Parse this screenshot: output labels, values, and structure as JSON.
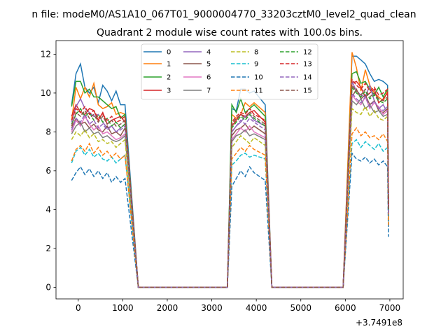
{
  "suptitle": "n file: modeM0/AS1A10_067T01_9000004770_33203cztM0_level2_quad_clean",
  "chart_data": {
    "type": "line",
    "title": "Quadrant 2 module wise count rates with 100.0s bins.",
    "xlabel": "",
    "ylabel": "",
    "offset_label": "+3.7491e8",
    "xlim": [
      -500,
      7300
    ],
    "ylim": [
      -0.6,
      12.7
    ],
    "xticks": [
      0,
      1000,
      2000,
      3000,
      4000,
      5000,
      6000,
      7000
    ],
    "xtick_labels": [
      "0",
      "1000",
      "2000",
      "3000",
      "4000",
      "5000",
      "6000",
      "7000"
    ],
    "yticks": [
      0,
      2,
      4,
      6,
      8,
      10,
      12
    ],
    "ytick_labels": [
      "0",
      "2",
      "4",
      "6",
      "8",
      "10",
      "12"
    ],
    "legend": {
      "placement": "top-center",
      "columns": 4
    },
    "segments": [
      {
        "x": [
          -150,
          -50,
          50,
          150,
          250,
          350,
          450,
          550,
          650,
          750,
          850,
          950,
          1050,
          1150,
          1250,
          1350
        ],
        "x_end_drop": 1350
      },
      {
        "x": [
          3350,
          3450,
          3550,
          3650,
          3750,
          3850,
          3950,
          4050,
          4150,
          4250,
          4350
        ]
      },
      {
        "x": [
          5950,
          6050,
          6150,
          6250,
          6350,
          6450,
          6550,
          6650,
          6750,
          6850,
          6950
        ]
      }
    ],
    "gaps": {
      "zero_x": [
        [
          1350,
          3350
        ],
        [
          4350,
          5950
        ]
      ],
      "zero_value": 0
    },
    "series": [
      {
        "name": "0",
        "color": "#1f77b4",
        "dash": "solid",
        "values": [
          9.4,
          11.0,
          11.5,
          10.3,
          10.0,
          10.3,
          9.5,
          10.4,
          10.1,
          9.6,
          10.1,
          9.4,
          9.4,
          0,
          0,
          9.2,
          9.1,
          10.2,
          10.2,
          10.0,
          10.1,
          9.4,
          0,
          0,
          11.9,
          11.9,
          11.7,
          11.5,
          11.0,
          10.6,
          10.7,
          10.6,
          10.4,
          4.3
        ]
      },
      {
        "name": "1",
        "color": "#ff7f0e",
        "dash": "solid",
        "values": [
          8.6,
          10.3,
          9.7,
          10.3,
          9.8,
          10.5,
          9.4,
          9.2,
          9.3,
          9.5,
          8.9,
          9.0,
          8.9,
          0,
          0,
          8.9,
          8.7,
          8.9,
          9.5,
          9.3,
          9.5,
          9.0,
          0,
          0,
          12.1,
          11.3,
          10.1,
          11.2,
          10.4,
          10.0,
          9.8,
          9.6,
          10.1,
          4.1
        ]
      },
      {
        "name": "2",
        "color": "#2ca02c",
        "dash": "solid",
        "values": [
          9.3,
          10.6,
          10.6,
          10.0,
          10.2,
          9.8,
          9.8,
          9.6,
          9.4,
          9.2,
          9.3,
          8.7,
          8.9,
          0,
          0,
          9.4,
          9.0,
          9.7,
          9.0,
          9.2,
          9.4,
          8.8,
          0,
          0,
          11.0,
          11.1,
          10.5,
          10.6,
          10.2,
          9.9,
          10.3,
          9.8,
          10.2,
          4.0
        ]
      },
      {
        "name": "3",
        "color": "#d62728",
        "dash": "solid",
        "values": [
          8.8,
          9.4,
          9.0,
          8.9,
          9.2,
          9.1,
          8.6,
          9.0,
          8.4,
          8.6,
          8.7,
          8.8,
          8.5,
          0,
          0,
          8.3,
          8.6,
          8.9,
          8.8,
          9.0,
          9.1,
          8.5,
          0,
          0,
          10.5,
          10.6,
          10.3,
          9.8,
          10.0,
          10.2,
          9.5,
          9.7,
          10.0,
          4.0
        ]
      },
      {
        "name": "4",
        "color": "#9467bd",
        "dash": "solid",
        "values": [
          8.5,
          9.3,
          9.7,
          9.2,
          9.0,
          8.8,
          8.9,
          8.5,
          8.2,
          8.3,
          8.0,
          8.2,
          8.4,
          0,
          0,
          8.0,
          8.3,
          8.5,
          8.8,
          8.9,
          8.6,
          8.3,
          0,
          0,
          10.6,
          10.1,
          9.9,
          9.8,
          10.4,
          9.6,
          9.2,
          9.4,
          9.0,
          3.9
        ]
      },
      {
        "name": "5",
        "color": "#8c564b",
        "dash": "solid",
        "values": [
          8.2,
          8.7,
          8.4,
          8.5,
          8.2,
          8.4,
          8.1,
          8.0,
          8.3,
          7.9,
          8.0,
          7.8,
          8.2,
          0,
          0,
          7.8,
          8.1,
          8.2,
          8.4,
          8.1,
          8.3,
          7.9,
          0,
          0,
          9.8,
          10.2,
          9.7,
          9.9,
          9.4,
          9.6,
          9.1,
          9.0,
          9.2,
          3.8
        ]
      },
      {
        "name": "6",
        "color": "#e377c2",
        "dash": "solid",
        "values": [
          8.0,
          8.6,
          8.3,
          8.8,
          8.4,
          8.1,
          8.3,
          7.9,
          8.0,
          7.8,
          7.6,
          7.7,
          7.9,
          0,
          0,
          7.6,
          7.9,
          8.2,
          8.0,
          8.3,
          8.0,
          7.7,
          0,
          0,
          9.9,
          9.6,
          9.4,
          9.8,
          9.2,
          9.5,
          9.3,
          8.9,
          9.1,
          3.7
        ]
      },
      {
        "name": "7",
        "color": "#7f7f7f",
        "dash": "solid",
        "values": [
          7.9,
          8.3,
          8.5,
          8.0,
          8.2,
          7.9,
          8.0,
          7.7,
          7.8,
          7.6,
          7.5,
          7.6,
          7.8,
          0,
          0,
          7.5,
          7.8,
          7.9,
          8.1,
          7.8,
          7.9,
          7.6,
          0,
          0,
          9.6,
          9.4,
          9.7,
          9.2,
          9.4,
          9.0,
          9.1,
          8.8,
          8.9,
          3.6
        ]
      },
      {
        "name": "8",
        "color": "#bcbd22",
        "dash": "dashed",
        "values": [
          7.6,
          8.0,
          7.8,
          8.1,
          7.7,
          7.9,
          7.5,
          7.6,
          7.4,
          7.5,
          7.2,
          7.4,
          7.6,
          0,
          0,
          7.2,
          7.5,
          7.8,
          7.6,
          7.4,
          7.7,
          7.3,
          0,
          0,
          9.2,
          9.0,
          8.9,
          9.3,
          8.8,
          9.1,
          8.7,
          8.6,
          8.8,
          3.4
        ]
      },
      {
        "name": "9",
        "color": "#17becf",
        "dash": "dashed",
        "values": [
          6.4,
          7.0,
          7.2,
          6.8,
          7.1,
          6.7,
          6.9,
          6.6,
          6.5,
          6.7,
          6.4,
          6.6,
          6.8,
          0,
          0,
          6.3,
          6.5,
          6.8,
          6.9,
          6.7,
          6.8,
          6.6,
          0,
          0,
          7.4,
          7.6,
          7.2,
          7.5,
          7.3,
          7.1,
          7.4,
          7.0,
          7.2,
          3.1
        ]
      },
      {
        "name": "10",
        "color": "#1f77b4",
        "dash": "dashed",
        "values": [
          5.5,
          5.9,
          6.2,
          5.8,
          6.1,
          5.7,
          6.0,
          5.6,
          5.9,
          5.4,
          5.7,
          5.4,
          5.6,
          0,
          0,
          5.2,
          5.6,
          6.0,
          5.7,
          6.2,
          5.9,
          5.5,
          0,
          0,
          6.9,
          6.6,
          6.5,
          6.7,
          6.4,
          6.6,
          6.3,
          6.5,
          6.2,
          2.6
        ]
      },
      {
        "name": "11",
        "color": "#ff7f0e",
        "dash": "dashed",
        "values": [
          6.5,
          7.1,
          7.3,
          7.0,
          7.4,
          6.9,
          7.2,
          6.8,
          7.0,
          6.7,
          6.9,
          6.6,
          6.8,
          0,
          0,
          6.6,
          6.9,
          7.2,
          7.0,
          7.3,
          7.1,
          6.8,
          0,
          0,
          7.9,
          8.2,
          7.8,
          8.0,
          7.7,
          7.8,
          7.6,
          7.9,
          7.5,
          3.2
        ]
      },
      {
        "name": "12",
        "color": "#2ca02c",
        "dash": "dashed",
        "values": [
          8.4,
          8.9,
          9.2,
          8.8,
          9.0,
          8.6,
          8.9,
          8.5,
          8.7,
          8.3,
          8.5,
          8.2,
          8.4,
          0,
          0,
          8.2,
          8.5,
          8.8,
          8.6,
          8.9,
          8.7,
          8.3,
          0,
          0,
          10.3,
          10.0,
          9.8,
          10.1,
          9.7,
          9.9,
          9.6,
          9.5,
          9.7,
          3.9
        ]
      },
      {
        "name": "13",
        "color": "#d62728",
        "dash": "dashed",
        "values": [
          8.6,
          9.2,
          9.0,
          9.3,
          8.9,
          9.1,
          8.7,
          8.9,
          8.6,
          8.8,
          8.5,
          8.6,
          8.8,
          0,
          0,
          8.5,
          8.8,
          9.0,
          8.9,
          9.2,
          8.9,
          8.6,
          0,
          0,
          10.7,
          10.4,
          10.2,
          10.5,
          10.1,
          10.3,
          9.9,
          10.0,
          10.2,
          4.1
        ]
      },
      {
        "name": "14",
        "color": "#9467bd",
        "dash": "dashed",
        "values": [
          8.1,
          8.7,
          8.5,
          8.9,
          8.4,
          8.6,
          8.2,
          8.4,
          8.1,
          8.3,
          8.0,
          8.1,
          8.3,
          0,
          0,
          8.0,
          8.3,
          8.6,
          8.4,
          8.7,
          8.5,
          8.1,
          0,
          0,
          10.0,
          9.7,
          9.5,
          9.8,
          9.3,
          9.6,
          9.2,
          9.1,
          9.3,
          3.8
        ]
      },
      {
        "name": "15",
        "color": "#8c564b",
        "dash": "dashed",
        "values": [
          8.3,
          9.0,
          8.8,
          9.1,
          8.7,
          8.9,
          8.5,
          8.8,
          8.4,
          8.6,
          8.3,
          8.4,
          8.6,
          0,
          0,
          8.4,
          8.7,
          8.9,
          8.7,
          9.0,
          8.8,
          8.4,
          0,
          0,
          10.4,
          10.1,
          9.9,
          10.2,
          9.8,
          10.0,
          9.7,
          9.6,
          9.8,
          4.0
        ]
      }
    ]
  }
}
